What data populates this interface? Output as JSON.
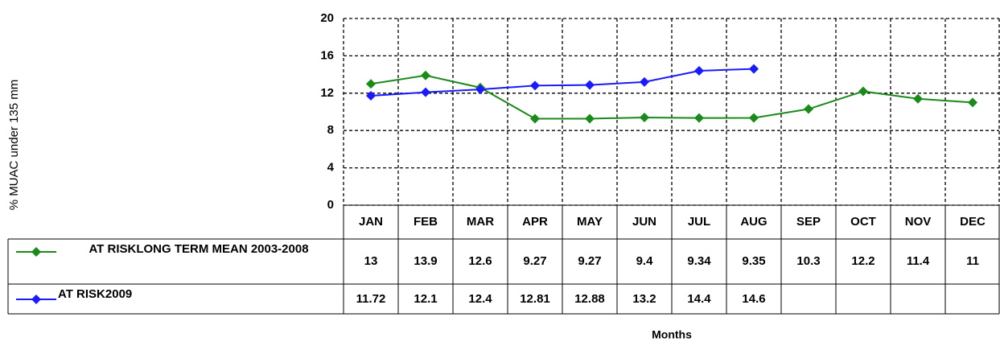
{
  "chart_data": {
    "type": "line",
    "ylabel": "% MUAC under 135 mm",
    "xlabel": "Months",
    "categories": [
      "JAN",
      "FEB",
      "MAR",
      "APR",
      "MAY",
      "JUN",
      "JUL",
      "AUG",
      "SEP",
      "OCT",
      "NOV",
      "DEC"
    ],
    "series": [
      {
        "name": "AT RISKLONG TERM MEAN 2003-2008",
        "color": "#1a8a1a",
        "values": [
          13,
          13.9,
          12.6,
          9.27,
          9.27,
          9.4,
          9.34,
          9.35,
          10.3,
          12.2,
          11.4,
          11
        ]
      },
      {
        "name": "AT RISK2009",
        "color": "#1a1aff",
        "values": [
          11.72,
          12.1,
          12.4,
          12.81,
          12.88,
          13.2,
          14.4,
          14.6,
          null,
          null,
          null,
          null
        ]
      }
    ],
    "ylim": [
      0,
      20
    ],
    "yticks": [
      0,
      4,
      8,
      12,
      16,
      20
    ],
    "grid": true
  }
}
